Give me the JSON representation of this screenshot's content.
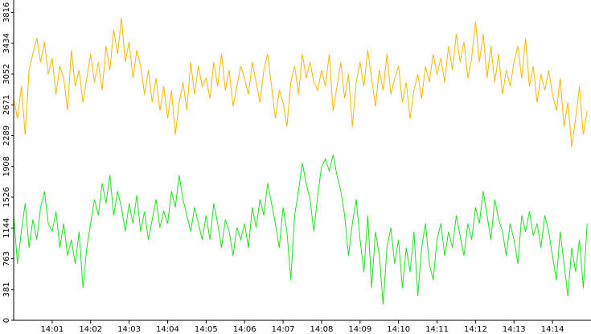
{
  "chart_data": {
    "type": "line",
    "x": [
      0,
      0.1,
      0.2,
      0.3,
      0.4,
      0.5,
      0.6,
      0.7,
      0.8,
      0.9,
      1,
      1.1,
      1.2,
      1.3,
      1.4,
      1.5,
      1.6,
      1.7,
      1.8,
      1.9,
      2,
      2.1,
      2.2,
      2.3,
      2.4,
      2.5,
      2.6,
      2.7,
      2.8,
      2.9,
      3,
      3.1,
      3.2,
      3.3,
      3.4,
      3.5,
      3.6,
      3.7,
      3.8,
      3.9,
      4,
      4.1,
      4.2,
      4.3,
      4.4,
      4.5,
      4.6,
      4.7,
      4.8,
      4.9,
      5,
      5.1,
      5.2,
      5.3,
      5.4,
      5.5,
      5.6,
      5.7,
      5.8,
      5.9,
      6,
      6.1,
      6.2,
      6.3,
      6.4,
      6.5,
      6.6,
      6.7,
      6.8,
      6.9,
      7,
      7.1,
      7.2,
      7.3,
      7.4,
      7.5,
      7.6,
      7.7,
      7.8,
      7.9,
      8,
      8.1,
      8.2,
      8.3,
      8.4,
      8.5,
      8.6,
      8.7,
      8.8,
      8.9,
      9,
      9.1,
      9.2,
      9.3,
      9.4,
      9.5,
      9.6,
      9.7,
      9.8,
      9.9,
      10,
      10.1,
      10.2,
      10.3,
      10.4,
      10.5,
      10.6,
      10.7,
      10.8,
      10.9,
      11,
      11.1,
      11.2,
      11.3,
      11.4,
      11.5,
      11.6,
      11.7,
      11.8,
      11.9,
      12,
      12.1,
      12.2,
      12.3,
      12.4,
      12.5,
      12.6,
      12.7,
      12.8,
      12.9,
      13,
      13.1,
      13.2,
      13.3,
      13.4,
      13.5,
      13.6,
      13.7,
      13.8,
      13.9,
      14,
      14.1,
      14.2,
      14.3,
      14.4,
      14.5,
      14.6,
      14.7,
      14.8,
      14.9
    ],
    "series": [
      {
        "color": "#f5b800",
        "values": [
          2750,
          2500,
          2900,
          2300,
          3100,
          3300,
          3500,
          3200,
          3450,
          3050,
          3250,
          2800,
          3150,
          3000,
          2600,
          3350,
          2900,
          3100,
          2700,
          3000,
          3300,
          2950,
          3200,
          2850,
          3400,
          3100,
          3600,
          3300,
          3750,
          3200,
          3450,
          3000,
          3350,
          3150,
          2800,
          3100,
          2700,
          3000,
          2600,
          2900,
          2500,
          2850,
          2300,
          2700,
          2950,
          2600,
          3200,
          2800,
          3150,
          2900,
          3000,
          2750,
          3200,
          2900,
          3300,
          2850,
          3100,
          2650,
          2900,
          3150,
          3000,
          2800,
          3200,
          2950,
          2700,
          3100,
          3300,
          2900,
          2500,
          2850,
          2700,
          2400,
          2950,
          3150,
          2800,
          3300,
          3000,
          3200,
          2950,
          2850,
          3100,
          2900,
          3300,
          2600,
          2900,
          3200,
          2750,
          3050,
          2400,
          2950,
          3200,
          2900,
          3350,
          3000,
          2650,
          3100,
          2850,
          3300,
          2800,
          3000,
          3150,
          2700,
          2950,
          2500,
          2850,
          3050,
          2750,
          3150,
          2950,
          3300,
          3050,
          3250,
          2950,
          3400,
          3100,
          3550,
          3200,
          3450,
          3000,
          3250,
          3700,
          3200,
          3550,
          3000,
          3400,
          2950,
          3300,
          2800,
          3100,
          2900,
          3200,
          3400,
          3000,
          3500,
          2900,
          3150,
          2700,
          3050,
          2850,
          3100,
          2800,
          2600,
          3000,
          2400,
          2700,
          2150,
          2500,
          2900,
          2300,
          2600
        ]
      },
      {
        "color": "#22dd22",
        "values": [
          1300,
          700,
          1100,
          1450,
          900,
          1250,
          1000,
          1400,
          1600,
          1200,
          1100,
          1350,
          900,
          1200,
          800,
          1000,
          700,
          1100,
          400,
          900,
          1200,
          1500,
          1300,
          1700,
          1450,
          1800,
          1300,
          1600,
          1400,
          1100,
          1450,
          1200,
          1550,
          1100,
          1350,
          1000,
          1250,
          1500,
          1150,
          1350,
          1200,
          1600,
          1400,
          1800,
          1500,
          1300,
          1100,
          1400,
          1200,
          1000,
          1300,
          1000,
          1450,
          1200,
          900,
          1250,
          1100,
          800,
          1150,
          1000,
          1200,
          900,
          1400,
          1150,
          1500,
          1300,
          1700,
          1450,
          1200,
          900,
          1400,
          1100,
          500,
          1300,
          1600,
          1950,
          1700,
          1500,
          1100,
          1550,
          1900,
          2000,
          1850,
          2050,
          1800,
          1600,
          1300,
          800,
          1200,
          1500,
          1000,
          600,
          1300,
          400,
          1100,
          800,
          200,
          900,
          1150,
          700,
          1000,
          400,
          900,
          600,
          1100,
          300,
          900,
          1200,
          700,
          500,
          1000,
          1200,
          800,
          1100,
          900,
          1300,
          1050,
          800,
          1200,
          1000,
          1400,
          1200,
          1600,
          1300,
          1000,
          1500,
          1250,
          1100,
          800,
          1200,
          1000,
          700,
          1300,
          1100,
          1350,
          1050,
          1200,
          900,
          1300,
          1100,
          800,
          500,
          1100,
          700,
          300,
          900,
          600,
          1000,
          400,
          1200
        ]
      }
    ],
    "xlim": [
      0,
      15
    ],
    "xticks": [
      {
        "value": 1,
        "label": "14:01"
      },
      {
        "value": 2,
        "label": "14:02"
      },
      {
        "value": 3,
        "label": "14:03"
      },
      {
        "value": 4,
        "label": "14:04"
      },
      {
        "value": 5,
        "label": "14:05"
      },
      {
        "value": 6,
        "label": "14:06"
      },
      {
        "value": 7,
        "label": "14:07"
      },
      {
        "value": 8,
        "label": "14:08"
      },
      {
        "value": 9,
        "label": "14:09"
      },
      {
        "value": 10,
        "label": "14:10"
      },
      {
        "value": 11,
        "label": "14:11"
      },
      {
        "value": 12,
        "label": "14:12"
      },
      {
        "value": 13,
        "label": "14:13"
      },
      {
        "value": 14,
        "label": "14:14"
      }
    ],
    "ylim": [
      0,
      3970
    ],
    "yticks": [
      0,
      381,
      763,
      1144,
      1526,
      1908,
      2289,
      2671,
      3052,
      3434,
      3816
    ],
    "grid": false
  }
}
